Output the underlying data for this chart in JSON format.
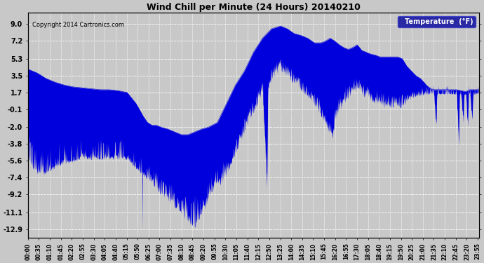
{
  "title": "Wind Chill per Minute (24 Hours) 20140210",
  "copyright": "Copyright 2014 Cartronics.com",
  "legend_label": "Temperature  (°F)",
  "yticks": [
    9.0,
    7.2,
    5.3,
    3.5,
    1.7,
    -0.1,
    -2.0,
    -3.8,
    -5.6,
    -7.4,
    -9.2,
    -11.1,
    -12.9
  ],
  "ylim": [
    -13.8,
    10.2
  ],
  "bg_color": "#c8c8c8",
  "plot_bg_color": "#c8c8c8",
  "line_color": "#0000dd",
  "fill_color": "#0000dd",
  "grid_color": "#ffffff",
  "title_color": "#000000",
  "legend_bg": "#000099",
  "legend_text_color": "#ffffff",
  "xtick_labels": [
    "00:00",
    "00:35",
    "01:10",
    "01:45",
    "02:20",
    "02:55",
    "03:30",
    "04:05",
    "04:40",
    "05:15",
    "05:50",
    "06:25",
    "07:00",
    "07:35",
    "08:10",
    "08:45",
    "09:20",
    "09:55",
    "10:30",
    "11:05",
    "11:40",
    "12:15",
    "12:50",
    "13:25",
    "14:00",
    "14:35",
    "15:10",
    "15:45",
    "16:20",
    "16:55",
    "17:30",
    "18:05",
    "18:40",
    "19:15",
    "19:50",
    "20:25",
    "21:00",
    "21:35",
    "22:10",
    "22:45",
    "23:20",
    "23:55"
  ],
  "figsize": [
    6.9,
    3.75
  ],
  "dpi": 100
}
